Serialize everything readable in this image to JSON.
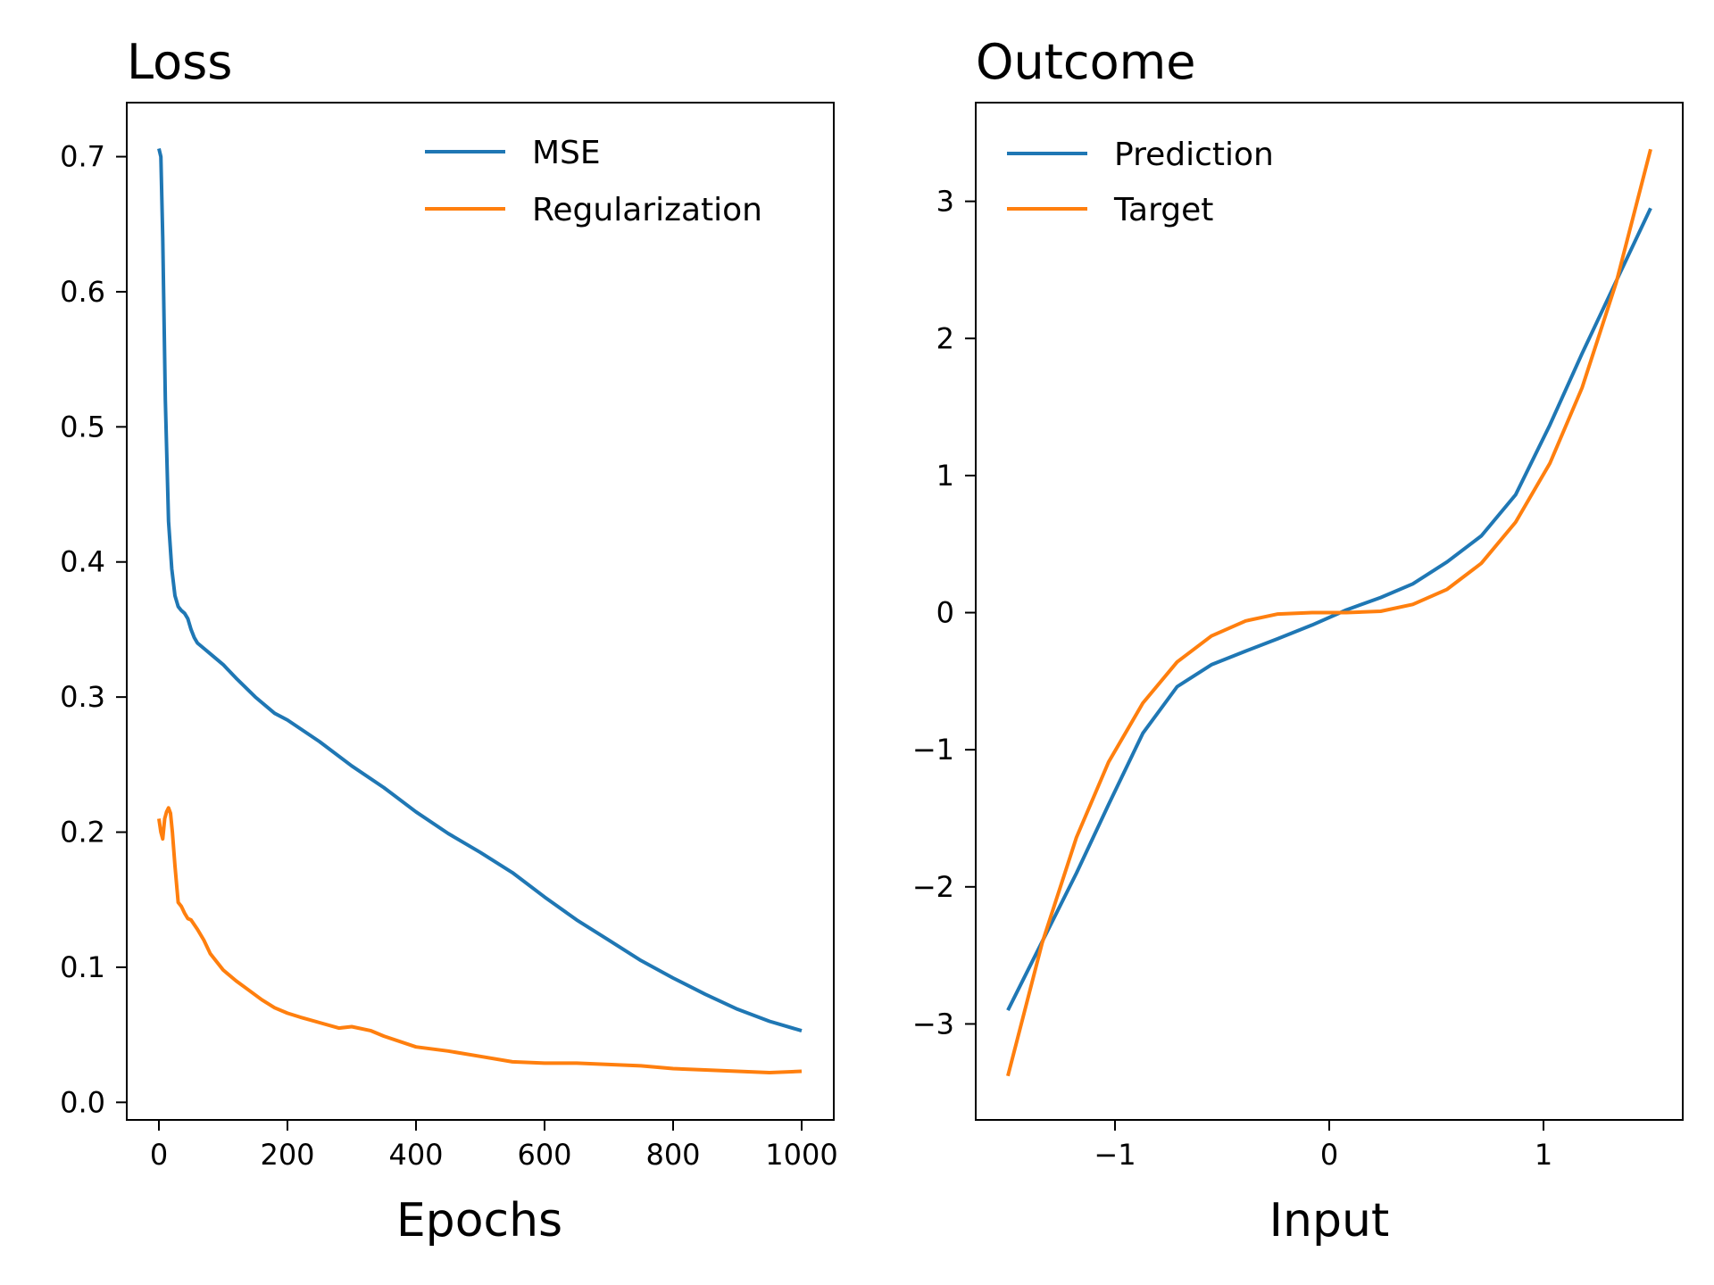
{
  "colors": {
    "blue": "#1f77b4",
    "orange": "#ff7f0e"
  },
  "chart_data": [
    {
      "type": "line",
      "title": "Loss",
      "xlabel": "Epochs",
      "ylabel": "",
      "xlim": [
        -50,
        1050
      ],
      "ylim": [
        -0.013,
        0.74
      ],
      "xticks": [
        0,
        200,
        400,
        600,
        800,
        1000
      ],
      "xtick_labels": [
        "0",
        "200",
        "400",
        "600",
        "800",
        "1000"
      ],
      "yticks": [
        0.0,
        0.1,
        0.2,
        0.3,
        0.4,
        0.5,
        0.6,
        0.7
      ],
      "ytick_labels": [
        "0.0",
        "0.1",
        "0.2",
        "0.3",
        "0.4",
        "0.5",
        "0.6",
        "0.7"
      ],
      "grid": false,
      "legend_position": "top-right",
      "series": [
        {
          "name": "MSE",
          "color": "#1f77b4",
          "x": [
            0,
            3,
            6,
            10,
            15,
            20,
            25,
            30,
            35,
            40,
            45,
            50,
            55,
            60,
            70,
            80,
            100,
            120,
            150,
            180,
            200,
            250,
            300,
            350,
            400,
            450,
            500,
            550,
            600,
            650,
            700,
            750,
            800,
            850,
            900,
            950,
            1000
          ],
          "y": [
            0.706,
            0.7,
            0.64,
            0.52,
            0.43,
            0.395,
            0.375,
            0.367,
            0.364,
            0.362,
            0.358,
            0.35,
            0.344,
            0.34,
            0.336,
            0.332,
            0.324,
            0.314,
            0.3,
            0.288,
            0.283,
            0.267,
            0.249,
            0.233,
            0.215,
            0.199,
            0.185,
            0.17,
            0.152,
            0.135,
            0.12,
            0.105,
            0.092,
            0.08,
            0.069,
            0.06,
            0.053
          ]
        },
        {
          "name": "Regularization",
          "color": "#ff7f0e",
          "x": [
            0,
            3,
            6,
            9,
            12,
            15,
            18,
            21,
            25,
            30,
            35,
            40,
            45,
            50,
            60,
            70,
            80,
            90,
            100,
            120,
            140,
            160,
            180,
            200,
            220,
            250,
            280,
            300,
            330,
            350,
            400,
            450,
            500,
            550,
            600,
            650,
            700,
            750,
            800,
            850,
            900,
            950,
            1000
          ],
          "y": [
            0.21,
            0.2,
            0.195,
            0.21,
            0.215,
            0.218,
            0.214,
            0.2,
            0.175,
            0.148,
            0.145,
            0.14,
            0.136,
            0.135,
            0.128,
            0.12,
            0.11,
            0.104,
            0.098,
            0.09,
            0.083,
            0.076,
            0.07,
            0.066,
            0.063,
            0.059,
            0.055,
            0.056,
            0.053,
            0.049,
            0.041,
            0.038,
            0.034,
            0.03,
            0.029,
            0.029,
            0.028,
            0.027,
            0.025,
            0.024,
            0.023,
            0.022,
            0.023
          ]
        }
      ]
    },
    {
      "type": "line",
      "title": "Outcome",
      "xlabel": "Input",
      "ylabel": "",
      "xlim": [
        -1.65,
        1.65
      ],
      "ylim": [
        -3.7,
        3.72
      ],
      "xticks": [
        -1,
        0,
        1
      ],
      "xtick_labels": [
        "−1",
        "0",
        "1"
      ],
      "yticks": [
        -3,
        -2,
        -1,
        0,
        1,
        2,
        3
      ],
      "ytick_labels": [
        "−3",
        "−2",
        "−1",
        "0",
        "1",
        "2",
        "3"
      ],
      "grid": false,
      "legend_position": "top-left",
      "series": [
        {
          "name": "Prediction",
          "color": "#1f77b4",
          "x": [
            -1.5,
            -1.34,
            -1.18,
            -1.03,
            -0.87,
            -0.71,
            -0.55,
            -0.39,
            -0.24,
            -0.08,
            0.08,
            0.24,
            0.39,
            0.55,
            0.71,
            0.87,
            1.03,
            1.18,
            1.34,
            1.5
          ],
          "y": [
            -2.9,
            -2.4,
            -1.9,
            -1.4,
            -0.88,
            -0.54,
            -0.38,
            -0.28,
            -0.19,
            -0.09,
            0.02,
            0.11,
            0.21,
            0.37,
            0.56,
            0.86,
            1.37,
            1.89,
            2.42,
            2.95
          ]
        },
        {
          "name": "Target",
          "color": "#ff7f0e",
          "x": [
            -1.5,
            -1.34,
            -1.18,
            -1.03,
            -0.87,
            -0.71,
            -0.55,
            -0.39,
            -0.24,
            -0.08,
            0.08,
            0.24,
            0.39,
            0.55,
            0.71,
            0.87,
            1.03,
            1.18,
            1.34,
            1.5
          ],
          "y": [
            -3.38,
            -2.41,
            -1.64,
            -1.09,
            -0.66,
            -0.36,
            -0.17,
            -0.06,
            -0.01,
            0.0,
            0.0,
            0.01,
            0.06,
            0.17,
            0.36,
            0.66,
            1.09,
            1.64,
            2.41,
            3.38
          ]
        }
      ]
    }
  ]
}
